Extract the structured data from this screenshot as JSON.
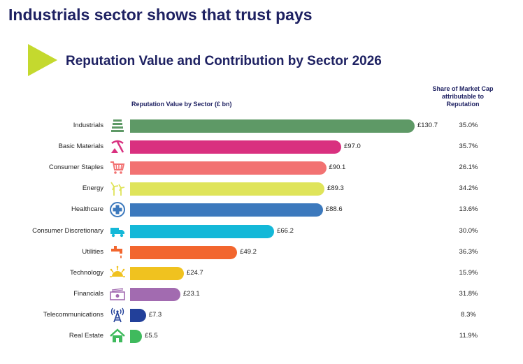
{
  "page_title": "Industrials sector shows that trust pays",
  "chart_data": {
    "type": "bar",
    "orientation": "horizontal",
    "title": "Reputation Value and Contribution by Sector 2026",
    "value_header": "Reputation Value by Sector (£ bn)",
    "share_header": "Share of Market Cap attributable to Reputation",
    "xlim": [
      0,
      132
    ],
    "categories": [
      "Industrials",
      "Basic Materials",
      "Consumer Staples",
      "Energy",
      "Healthcare",
      "Consumer Discretionary",
      "Utilities",
      "Technology",
      "Financials",
      "Telecommunications",
      "Real Estate"
    ],
    "values": [
      130.7,
      97.0,
      90.1,
      89.3,
      88.6,
      66.2,
      49.2,
      24.7,
      23.1,
      7.3,
      5.5
    ],
    "value_labels": [
      "£130.7",
      "£97.0",
      "£90.1",
      "£89.3",
      "£88.6",
      "£66.2",
      "£49.2",
      "£24.7",
      "£23.1",
      "£7.3",
      "£5.5"
    ],
    "shares": [
      "35.0%",
      "35.7%",
      "26.1%",
      "34.2%",
      "13.6%",
      "30.0%",
      "36.3%",
      "15.9%",
      "31.8%",
      "8.3%",
      "11.9%"
    ],
    "colors": [
      "#5e9966",
      "#d9307f",
      "#f27272",
      "#dfe45a",
      "#3c79bd",
      "#14b8d8",
      "#f2662e",
      "#f0c21f",
      "#a26bb0",
      "#22409a",
      "#3fba5d"
    ],
    "icons": [
      "factory-icon",
      "pickaxe-icon",
      "shopping-cart-icon",
      "wind-turbine-icon",
      "medical-cross-icon",
      "delivery-truck-icon",
      "water-tap-icon",
      "sun-circuit-icon",
      "banknote-icon",
      "radio-tower-icon",
      "house-icon"
    ]
  }
}
